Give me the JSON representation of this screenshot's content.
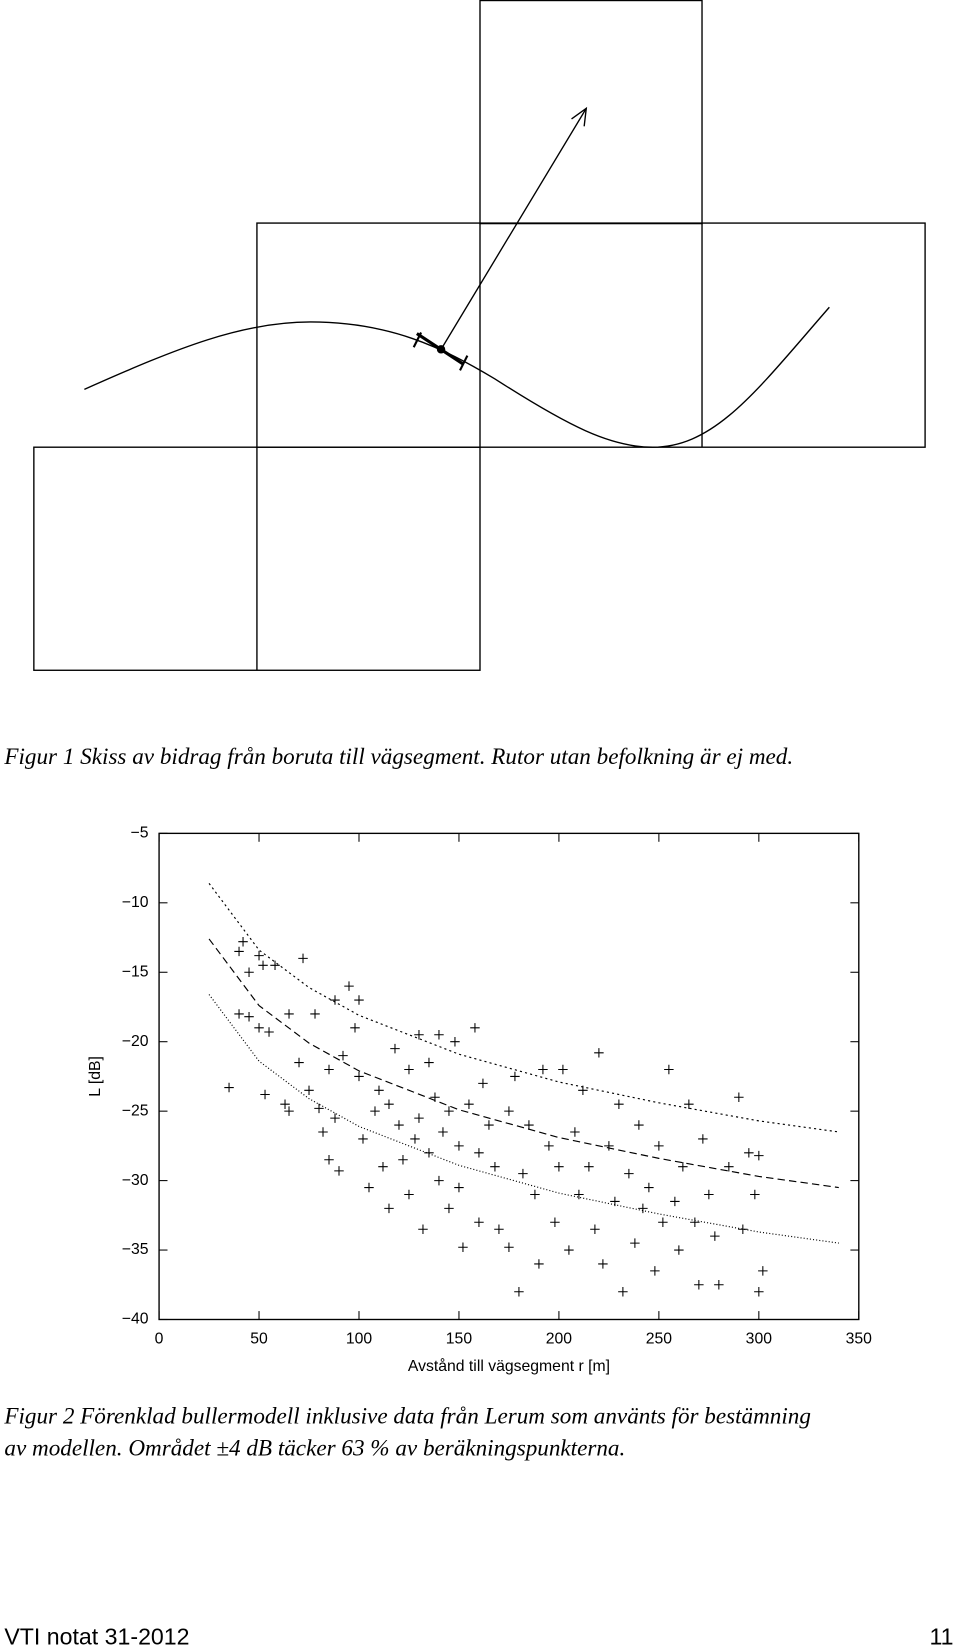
{
  "figure1": {
    "caption": "Figur 1  Skiss av bidrag från boruta till vägsegment. Rutor utan befolkning är ej med."
  },
  "chart_data": {
    "type": "scatter",
    "xlabel": "Avstånd till vägsegment r [m]",
    "ylabel": "L [dB]",
    "xlim": [
      0,
      350
    ],
    "ylim": [
      -40,
      -5
    ],
    "xticks": [
      0,
      50,
      100,
      150,
      200,
      250,
      300,
      350
    ],
    "yticks": [
      {
        "value": -5,
        "label": "−5"
      },
      {
        "value": -10,
        "label": "−10"
      },
      {
        "value": -15,
        "label": "−15"
      },
      {
        "value": -20,
        "label": "−20"
      },
      {
        "value": -25,
        "label": "−25"
      },
      {
        "value": -30,
        "label": "−30"
      },
      {
        "value": -35,
        "label": "−35"
      },
      {
        "value": -40,
        "label": "−40"
      }
    ],
    "grid": false,
    "marker": "+",
    "series": [
      {
        "color": "#000000",
        "x": [
          35,
          40,
          42,
          45,
          40,
          45,
          50,
          52,
          50,
          55,
          53,
          58,
          65,
          63,
          65,
          72,
          70,
          75,
          78,
          80,
          82,
          85,
          85,
          88,
          88,
          90,
          92,
          95,
          98,
          100,
          100,
          102,
          105,
          108,
          110,
          112,
          115,
          115,
          118,
          120,
          122,
          125,
          125,
          128,
          130,
          130,
          132,
          135,
          135,
          138,
          140,
          140,
          142,
          145,
          145,
          148,
          150,
          150,
          152,
          155,
          158,
          160,
          160,
          162,
          165,
          168,
          170,
          175,
          175,
          178,
          180,
          182,
          185,
          188,
          190,
          192,
          195,
          198,
          200,
          202,
          205,
          208,
          210,
          212,
          215,
          218,
          220,
          222,
          225,
          228,
          230,
          232,
          235,
          238,
          240,
          242,
          245,
          248,
          250,
          252,
          255,
          258,
          260,
          262,
          265,
          268,
          270,
          272,
          275,
          278,
          280,
          285,
          290,
          292,
          295,
          298,
          300,
          302,
          300
        ],
        "values": [
          -23.3,
          -13.5,
          -12.8,
          -15,
          -18,
          -18.2,
          -13.8,
          -14.5,
          -19,
          -19.3,
          -23.8,
          -14.5,
          -18,
          -24.5,
          -25,
          -14,
          -21.5,
          -23.5,
          -18,
          -24.8,
          -26.5,
          -22,
          -28.5,
          -17,
          -25.5,
          -29.3,
          -21,
          -16,
          -19,
          -22.5,
          -17,
          -27,
          -30.5,
          -25,
          -23.5,
          -29,
          -24.5,
          -32,
          -20.5,
          -26,
          -28.5,
          -22,
          -31,
          -27,
          -19.5,
          -25.5,
          -33.5,
          -21.5,
          -28,
          -24,
          -19.5,
          -30,
          -26.5,
          -25,
          -32,
          -20,
          -27.5,
          -30.5,
          -34.8,
          -24.5,
          -19,
          -28,
          -33,
          -23,
          -26,
          -29,
          -33.5,
          -25,
          -34.8,
          -22.5,
          -38,
          -29.5,
          -26,
          -31,
          -36,
          -22,
          -27.5,
          -33,
          -29,
          -22,
          -35,
          -26.5,
          -31,
          -23.5,
          -29,
          -33.5,
          -20.8,
          -36,
          -27.5,
          -31.5,
          -24.5,
          -38,
          -29.5,
          -34.5,
          -26,
          -32,
          -30.5,
          -36.5,
          -27.5,
          -33,
          -22,
          -31.5,
          -35,
          -29,
          -24.5,
          -33,
          -37.5,
          -27,
          -31,
          -34,
          -37.5,
          -29,
          -24,
          -33.5,
          -28,
          -31,
          -38,
          -36.5,
          -28.2
        ]
      },
      {
        "type": "line",
        "style": "2,3",
        "color": "#000000",
        "x": [
          25,
          50,
          75,
          100,
          150,
          200,
          250,
          300,
          340
        ],
        "values": [
          -8.6,
          -13.4,
          -16.1,
          -18.1,
          -20.9,
          -22.9,
          -24.4,
          -25.7,
          -26.5
        ]
      },
      {
        "type": "line",
        "style": "7,4",
        "color": "#000000",
        "x": [
          25,
          50,
          75,
          100,
          150,
          200,
          250,
          300,
          340
        ],
        "values": [
          -12.6,
          -17.4,
          -20.1,
          -22.1,
          -24.9,
          -26.9,
          -28.4,
          -29.7,
          -30.5
        ]
      },
      {
        "type": "line",
        "style": "1,2",
        "color": "#000000",
        "x": [
          25,
          50,
          75,
          100,
          150,
          200,
          250,
          300,
          340
        ],
        "values": [
          -16.6,
          -21.4,
          -24.1,
          -26.1,
          -28.9,
          -30.9,
          -32.4,
          -33.7,
          -34.5
        ]
      }
    ]
  },
  "figure2": {
    "caption_lines": [
      "Figur 2  Förenklad bullermodell inklusive data från Lerum som använts för bestämning",
      "av modellen. Området ±4 dB täcker 63 % av beräkningspunkterna."
    ]
  },
  "footer": {
    "left": "VTI notat 31-2012",
    "right": "11"
  }
}
